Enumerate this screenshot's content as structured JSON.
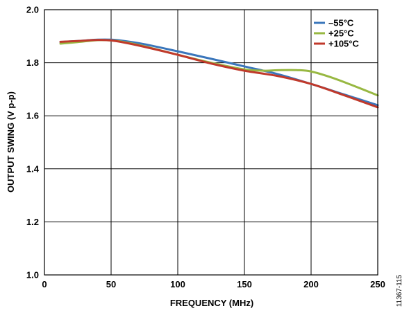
{
  "chart_data": {
    "type": "line",
    "xlabel": "FREQUENCY (MHz)",
    "ylabel": "OUTPUT SWING (V p-p)",
    "xlim": [
      0,
      250
    ],
    "ylim": [
      1.0,
      2.0
    ],
    "x_ticks": [
      "0",
      "50",
      "100",
      "150",
      "200",
      "250"
    ],
    "y_ticks": [
      "1.0",
      "1.2",
      "1.4",
      "1.6",
      "1.8",
      "2.0"
    ],
    "grid": true,
    "legend_position": "top-right",
    "series": [
      {
        "name": "–55°C",
        "color": "#3a76bb",
        "points": [
          [
            12,
            1.878
          ],
          [
            25,
            1.882
          ],
          [
            40,
            1.887
          ],
          [
            50,
            1.887
          ],
          [
            60,
            1.882
          ],
          [
            75,
            1.87
          ],
          [
            100,
            1.843
          ],
          [
            125,
            1.815
          ],
          [
            150,
            1.786
          ],
          [
            175,
            1.757
          ],
          [
            200,
            1.72
          ],
          [
            225,
            1.68
          ],
          [
            250,
            1.64
          ]
        ]
      },
      {
        "name": "+25°C",
        "color": "#98b842",
        "points": [
          [
            12,
            1.872
          ],
          [
            25,
            1.878
          ],
          [
            40,
            1.885
          ],
          [
            50,
            1.884
          ],
          [
            60,
            1.878
          ],
          [
            75,
            1.862
          ],
          [
            100,
            1.83
          ],
          [
            125,
            1.8
          ],
          [
            150,
            1.775
          ],
          [
            165,
            1.77
          ],
          [
            175,
            1.772
          ],
          [
            190,
            1.772
          ],
          [
            200,
            1.767
          ],
          [
            215,
            1.745
          ],
          [
            230,
            1.717
          ],
          [
            250,
            1.677
          ]
        ]
      },
      {
        "name": "+105°C",
        "color": "#c0392b",
        "points": [
          [
            12,
            1.879
          ],
          [
            25,
            1.882
          ],
          [
            40,
            1.886
          ],
          [
            50,
            1.884
          ],
          [
            60,
            1.876
          ],
          [
            75,
            1.86
          ],
          [
            100,
            1.83
          ],
          [
            125,
            1.797
          ],
          [
            150,
            1.77
          ],
          [
            175,
            1.75
          ],
          [
            200,
            1.72
          ],
          [
            225,
            1.677
          ],
          [
            250,
            1.632
          ]
        ]
      }
    ]
  },
  "figure_id": "11367-115"
}
